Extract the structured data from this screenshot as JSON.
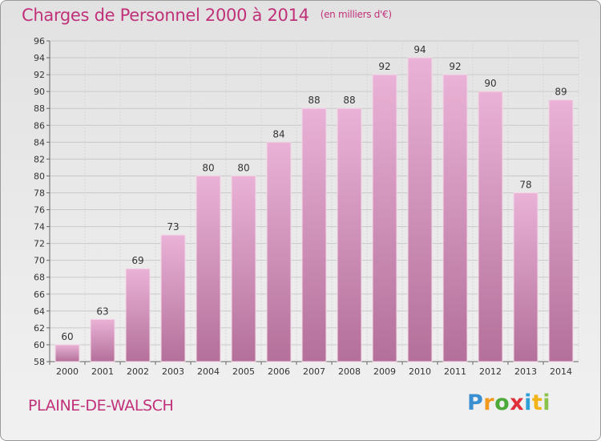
{
  "header": {
    "title": "Charges de Personnel 2000 à 2014",
    "subtitle": "(en milliers d'€)"
  },
  "footer": {
    "town": "PLAINE-DE-WALSCH",
    "logo_text": "Proxiti"
  },
  "colors": {
    "accent": "#c0317a",
    "bar_light": "#eab2d6",
    "bar_dark": "#b3709a"
  },
  "chart_data": {
    "type": "bar",
    "title": "Charges de Personnel 2000 à 2014",
    "subtitle": "(en milliers d'€)",
    "categories": [
      "2000",
      "2001",
      "2002",
      "2003",
      "2004",
      "2005",
      "2006",
      "2007",
      "2008",
      "2009",
      "2010",
      "2011",
      "2012",
      "2013",
      "2014"
    ],
    "values": [
      60,
      63,
      69,
      73,
      80,
      80,
      84,
      88,
      88,
      92,
      94,
      92,
      90,
      78,
      89
    ],
    "ylim": [
      58,
      96
    ],
    "ytick_step": 2,
    "grid": true,
    "xlabel": "",
    "ylabel": ""
  }
}
